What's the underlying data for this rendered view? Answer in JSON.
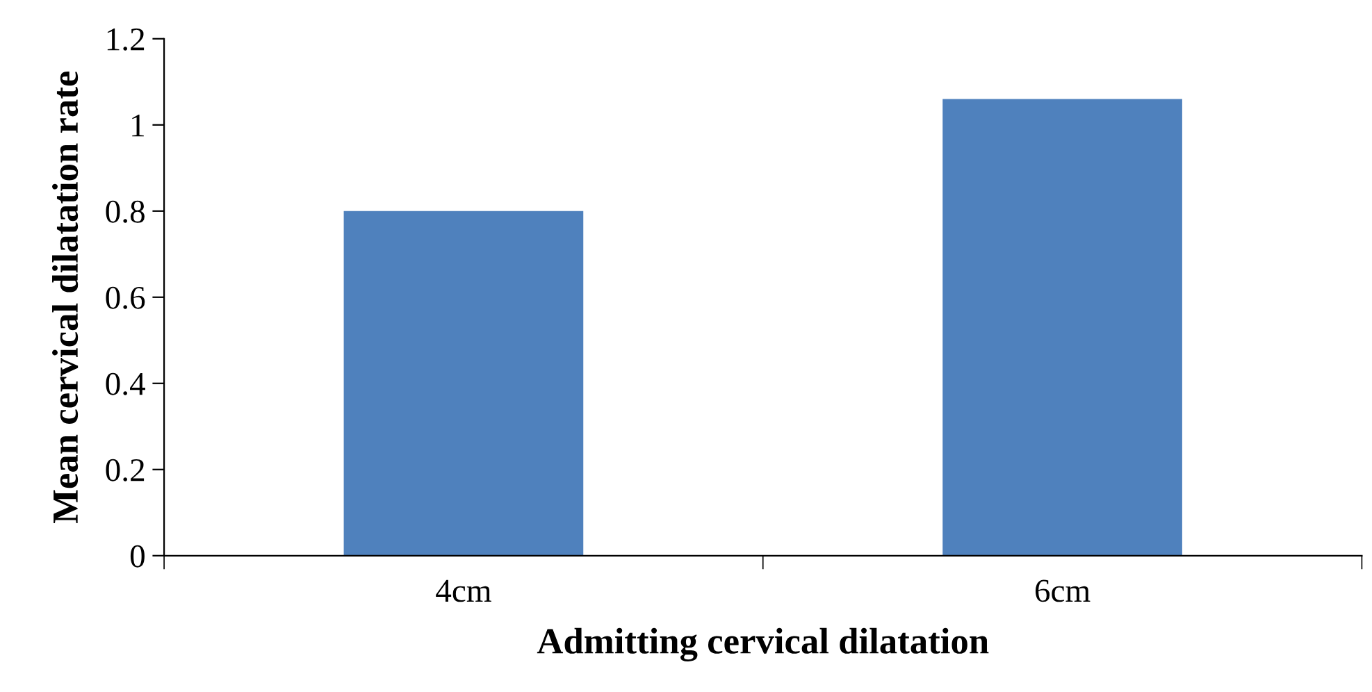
{
  "chart_data": {
    "type": "bar",
    "xlabel": "Admitting cervical dilatation",
    "ylabel": "Mean cervical dilatation rate",
    "categories": [
      "4cm",
      "6cm"
    ],
    "values": [
      0.8,
      1.06
    ],
    "color": "#4f81bd",
    "ylim": [
      0,
      1.2
    ],
    "yticks": [
      0,
      0.2,
      0.4,
      0.6,
      0.8,
      1,
      1.2
    ],
    "grid": false,
    "legend": false
  }
}
